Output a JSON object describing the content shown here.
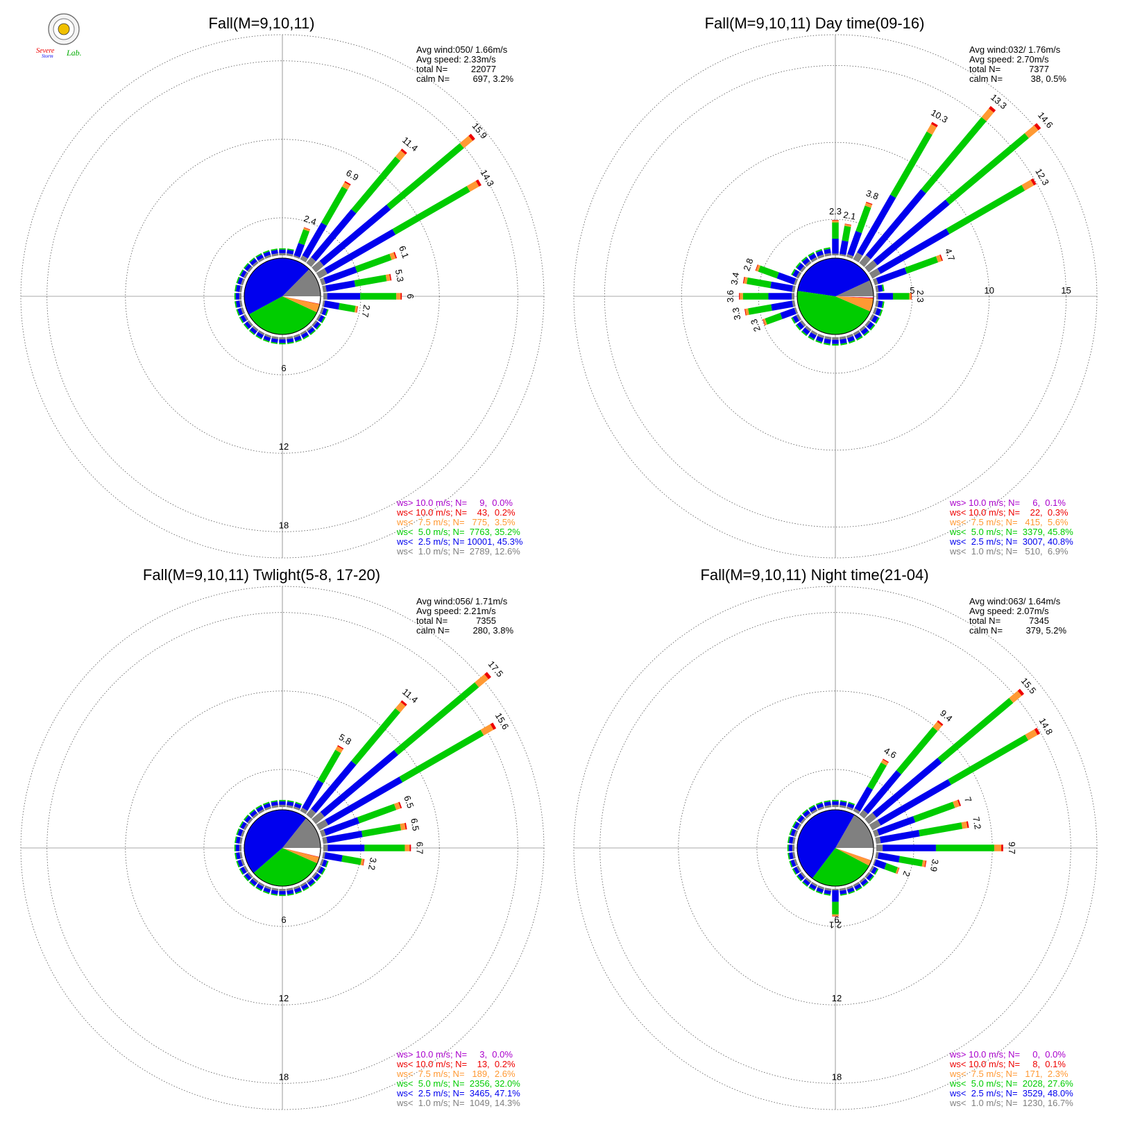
{
  "logo": {
    "text_line1": "Severe",
    "text_line2": "Storm",
    "text_suffix": "Lab."
  },
  "colors": {
    "gray": "#808080",
    "blue": "#0000ee",
    "green": "#00cc00",
    "orange": "#ff9933",
    "red": "#ee0000",
    "purple": "#aa00cc"
  },
  "chart_data": [
    {
      "type": "wind-rose",
      "title": "Fall(M=9,10,11)",
      "info": {
        "avg_wind": "Avg wind:050/ 1.66m/s",
        "avg_speed": "Avg speed: 2.33m/s",
        "total_label": "total N=",
        "total_value": "22077",
        "calm_label": "calm N=",
        "calm_value": "697,   3.2%"
      },
      "ring_labels": [
        "6",
        "12",
        "18"
      ],
      "ring_values": [
        6,
        12,
        18
      ],
      "rmax": 20,
      "bar_labels": [
        {
          "dir": 20,
          "value": 2.4
        },
        {
          "dir": 30,
          "value": 6.9
        },
        {
          "dir": 40,
          "value": 11.4
        },
        {
          "dir": 50,
          "value": 15.9
        },
        {
          "dir": 60,
          "value": 14.3
        },
        {
          "dir": 70,
          "value": 6.1
        },
        {
          "dir": 80,
          "value": 5.3
        },
        {
          "dir": 90,
          "value": 6.0
        },
        {
          "dir": 100,
          "value": 2.7
        }
      ],
      "pie": [
        12.6,
        45.3,
        35.2,
        3.5,
        0.2,
        0.0
      ],
      "legend": [
        {
          "text": "ws> 10.0 m/s; N=     9,  0.0%",
          "color": "purple"
        },
        {
          "text": "ws< 10.0 m/s; N=    43,  0.2%",
          "color": "red"
        },
        {
          "text": "ws<  7.5 m/s; N=   775,  3.5%",
          "color": "orange"
        },
        {
          "text": "ws<  5.0 m/s; N=  7763, 35.2%",
          "color": "green"
        },
        {
          "text": "ws<  2.5 m/s; N= 10001, 45.3%",
          "color": "blue"
        },
        {
          "text": "ws<  1.0 m/s; N=  2789, 12.6%",
          "color": "gray"
        }
      ]
    },
    {
      "type": "wind-rose",
      "title": "Fall(M=9,10,11) Day time(09-16)",
      "info": {
        "avg_wind": "Avg wind:032/ 1.76m/s",
        "avg_speed": "Avg speed: 2.70m/s",
        "total_label": "total N=",
        "total_value": "7377",
        "calm_label": "calm N=",
        "calm_value": "38,   0.5%"
      },
      "ring_labels": [
        "5",
        "10",
        "15"
      ],
      "ring_values": [
        5,
        10,
        15
      ],
      "rmax": 17,
      "bar_labels": [
        {
          "dir": 0,
          "value": 2.3
        },
        {
          "dir": 10,
          "value": 2.1
        },
        {
          "dir": 20,
          "value": 3.8
        },
        {
          "dir": 30,
          "value": 10.3
        },
        {
          "dir": 40,
          "value": 13.3
        },
        {
          "dir": 50,
          "value": 14.6
        },
        {
          "dir": 60,
          "value": 12.3
        },
        {
          "dir": 70,
          "value": 4.7
        },
        {
          "dir": 90,
          "value": 2.3
        },
        {
          "dir": 290,
          "value": 2.8
        },
        {
          "dir": 280,
          "value": 3.4
        },
        {
          "dir": 270,
          "value": 3.6
        },
        {
          "dir": 260,
          "value": 3.3
        },
        {
          "dir": 250,
          "value": 2.3
        }
      ],
      "pie": [
        6.9,
        40.8,
        45.8,
        5.6,
        0.3,
        0.1
      ],
      "legend": [
        {
          "text": "ws> 10.0 m/s; N=     6,  0.1%",
          "color": "purple"
        },
        {
          "text": "ws< 10.0 m/s; N=    22,  0.3%",
          "color": "red"
        },
        {
          "text": "ws<  7.5 m/s; N=   415,  5.6%",
          "color": "orange"
        },
        {
          "text": "ws<  5.0 m/s; N=  3379, 45.8%",
          "color": "green"
        },
        {
          "text": "ws<  2.5 m/s; N=  3007, 40.8%",
          "color": "blue"
        },
        {
          "text": "ws<  1.0 m/s; N=   510,  6.9%",
          "color": "gray"
        }
      ]
    },
    {
      "type": "wind-rose",
      "title": "Fall(M=9,10,11) Twlight(5-8, 17-20)",
      "info": {
        "avg_wind": "Avg wind:056/ 1.71m/s",
        "avg_speed": "Avg speed: 2.21m/s",
        "total_label": "total N=",
        "total_value": "7355",
        "calm_label": "calm N=",
        "calm_value": "280,   3.8%"
      },
      "ring_labels": [
        "6",
        "12",
        "18"
      ],
      "ring_values": [
        6,
        12,
        18
      ],
      "rmax": 20,
      "bar_labels": [
        {
          "dir": 30,
          "value": 5.8
        },
        {
          "dir": 40,
          "value": 11.4
        },
        {
          "dir": 50,
          "value": 17.5
        },
        {
          "dir": 60,
          "value": 15.6
        },
        {
          "dir": 70,
          "value": 6.5
        },
        {
          "dir": 80,
          "value": 6.5
        },
        {
          "dir": 90,
          "value": 6.7
        },
        {
          "dir": 100,
          "value": 3.2
        }
      ],
      "pie": [
        14.3,
        47.1,
        32.0,
        2.6,
        0.2,
        0.0
      ],
      "legend": [
        {
          "text": "ws> 10.0 m/s; N=     3,  0.0%",
          "color": "purple"
        },
        {
          "text": "ws< 10.0 m/s; N=    13,  0.2%",
          "color": "red"
        },
        {
          "text": "ws<  7.5 m/s; N=   189,  2.6%",
          "color": "orange"
        },
        {
          "text": "ws<  5.0 m/s; N=  2356, 32.0%",
          "color": "green"
        },
        {
          "text": "ws<  2.5 m/s; N=  3465, 47.1%",
          "color": "blue"
        },
        {
          "text": "ws<  1.0 m/s; N=  1049, 14.3%",
          "color": "gray"
        }
      ]
    },
    {
      "type": "wind-rose",
      "title": "Fall(M=9,10,11) Night time(21-04)",
      "info": {
        "avg_wind": "Avg wind:063/ 1.64m/s",
        "avg_speed": "Avg speed: 2.07m/s",
        "total_label": "total N=",
        "total_value": "7345",
        "calm_label": "calm N=",
        "calm_value": "379,   5.2%"
      },
      "ring_labels": [
        "6",
        "12",
        "18"
      ],
      "ring_values": [
        6,
        12,
        18
      ],
      "rmax": 20,
      "bar_labels": [
        {
          "dir": 30,
          "value": 4.6
        },
        {
          "dir": 40,
          "value": 9.4
        },
        {
          "dir": 50,
          "value": 15.5
        },
        {
          "dir": 60,
          "value": 14.8
        },
        {
          "dir": 70,
          "value": 7.0
        },
        {
          "dir": 80,
          "value": 7.2
        },
        {
          "dir": 90,
          "value": 9.7
        },
        {
          "dir": 100,
          "value": 3.9
        },
        {
          "dir": 110,
          "value": 2.0
        },
        {
          "dir": 180,
          "value": 2.1
        }
      ],
      "pie": [
        16.7,
        48.0,
        27.6,
        2.3,
        0.1,
        0.0
      ],
      "legend": [
        {
          "text": "ws> 10.0 m/s; N=     0,  0.0%",
          "color": "purple"
        },
        {
          "text": "ws< 10.0 m/s; N=     8,  0.1%",
          "color": "red"
        },
        {
          "text": "ws<  7.5 m/s; N=   171,  2.3%",
          "color": "orange"
        },
        {
          "text": "ws<  5.0 m/s; N=  2028, 27.6%",
          "color": "green"
        },
        {
          "text": "ws<  2.5 m/s; N=  3529, 48.0%",
          "color": "blue"
        },
        {
          "text": "ws<  1.0 m/s; N=  1230, 16.7%",
          "color": "gray"
        }
      ]
    }
  ]
}
